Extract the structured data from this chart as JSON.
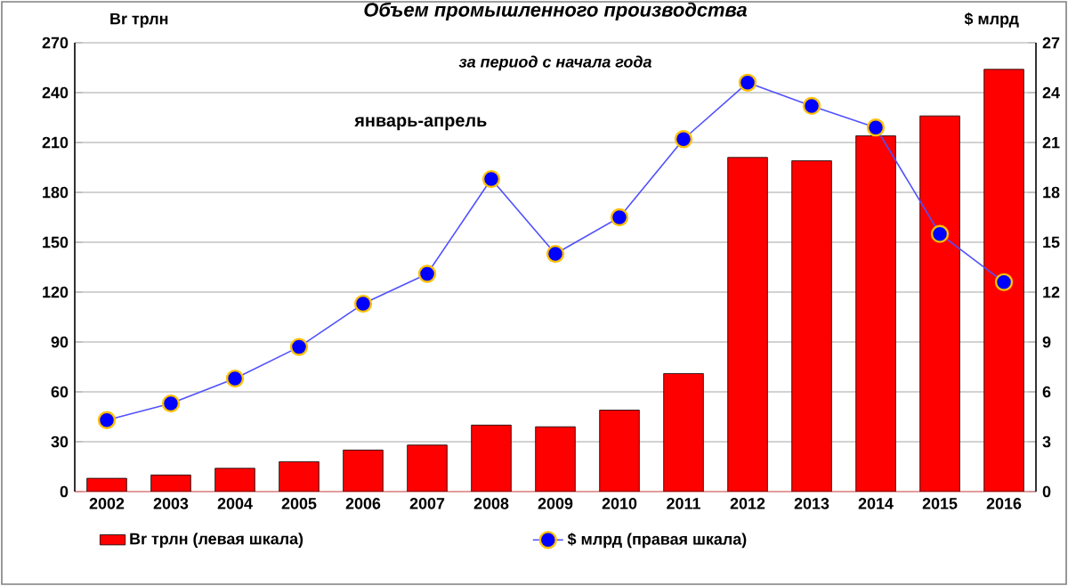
{
  "chart_data": {
    "type": "bar",
    "title": "Объем промышленного производства",
    "subtitle": "за период с начала года",
    "ylabel": "Br трлн",
    "y2label": "$ млрд",
    "annotations": [
      "январь-апрель"
    ],
    "categories": [
      "2002",
      "2003",
      "2004",
      "2005",
      "2006",
      "2007",
      "2008",
      "2009",
      "2010",
      "2011",
      "2012",
      "2013",
      "2014",
      "2015",
      "2016"
    ],
    "series": [
      {
        "name": "Br трлн (левая шкала)",
        "color": "#ff0000",
        "values": [
          8,
          10,
          14,
          18,
          25,
          28,
          40,
          39,
          49,
          71,
          201,
          199,
          214,
          226,
          254
        ]
      },
      {
        "name": "$ млрд (правая  шкала)",
        "type": "line",
        "axis": "y2",
        "color": "#0000ff",
        "marker": "circle",
        "values": [
          4.3,
          5.3,
          6.8,
          8.7,
          11.3,
          13.1,
          18.8,
          14.3,
          16.5,
          21.2,
          24.6,
          23.2,
          21.9,
          15.5,
          12.6
        ]
      }
    ],
    "ylim": [
      0,
      270
    ],
    "yticks": [
      0,
      30,
      60,
      90,
      120,
      150,
      180,
      210,
      240,
      270
    ],
    "y2lim": [
      0,
      27
    ],
    "y2ticks": [
      0,
      3,
      6,
      9,
      12,
      15,
      18,
      21,
      24,
      27
    ],
    "grid": "y",
    "legend": "bottom"
  }
}
